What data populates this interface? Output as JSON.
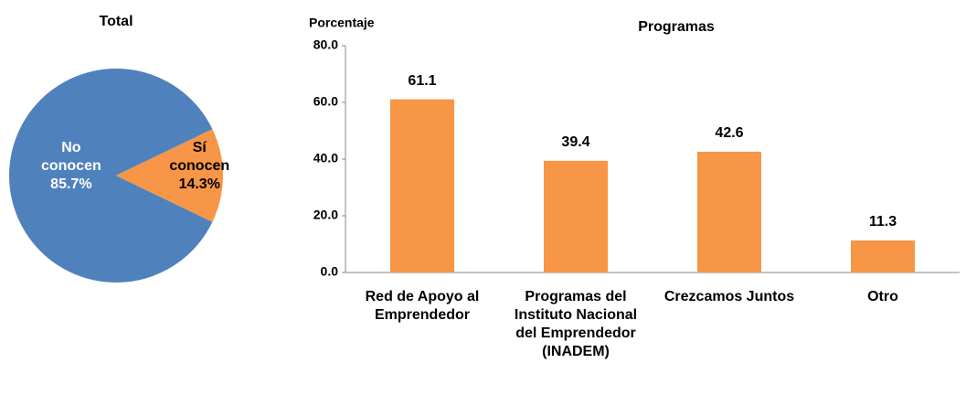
{
  "chart_data": [
    {
      "type": "pie",
      "title": "Total",
      "categories": [
        "No conocen",
        "Sí conocen"
      ],
      "values": [
        85.7,
        14.3
      ],
      "value_labels": [
        "85.7%",
        "14.3%"
      ],
      "colors": [
        "#4f81bd",
        "#f79646"
      ],
      "label_colors": [
        "#ffffff",
        "#000000"
      ]
    },
    {
      "type": "bar",
      "title": "Programas",
      "y_label": "Porcentaje",
      "categories": [
        "Red de Apoyo al Emprendedor",
        "Programas del Instituto Nacional del Emprendedor (INADEM)",
        "Crezcamos Juntos",
        "Otro"
      ],
      "values": [
        61.1,
        39.4,
        42.6,
        11.3
      ],
      "color": "#f79646",
      "ylim": [
        0,
        80
      ],
      "yticks": [
        {
          "value": 0,
          "label": "0.0"
        },
        {
          "value": 20,
          "label": "20.0"
        },
        {
          "value": 40,
          "label": "40.0"
        },
        {
          "value": 60,
          "label": "60.0"
        },
        {
          "value": 80,
          "label": "80.0"
        }
      ],
      "grid": false
    }
  ]
}
